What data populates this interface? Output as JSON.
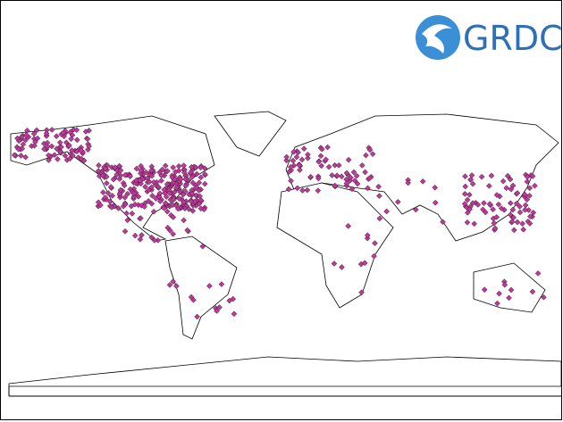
{
  "logo": {
    "text": "GRDC"
  }
}
